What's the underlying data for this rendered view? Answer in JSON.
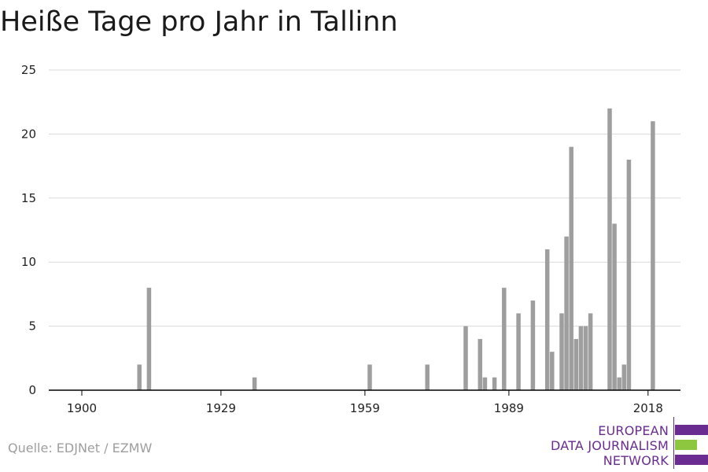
{
  "title": "Heiße Tage pro Jahr in Tallinn",
  "source": "Quelle: EDJNet / EZMW",
  "logo": {
    "lines": [
      "EUROPEAN",
      "DATA JOURNALISM",
      "NETWORK"
    ],
    "colors": {
      "purple": "#6a2c91",
      "green": "#8dc63f"
    }
  },
  "colors": {
    "bar": "#9e9e9e",
    "grid": "#d9d9d9",
    "axis": "#000000"
  },
  "chart_data": {
    "type": "bar",
    "title": "Heiße Tage pro Jahr in Tallinn",
    "xlabel": "",
    "ylabel": "",
    "xlim": [
      1894,
      2024
    ],
    "ylim": [
      0,
      25
    ],
    "x_ticks": [
      1900,
      1929,
      1959,
      1989,
      2018
    ],
    "y_ticks": [
      0,
      5,
      10,
      15,
      20,
      25
    ],
    "grid": true,
    "years": [
      1912,
      1914,
      1936,
      1960,
      1972,
      1980,
      1983,
      1984,
      1986,
      1988,
      1991,
      1994,
      1997,
      1998,
      2000,
      2001,
      2002,
      2003,
      2004,
      2005,
      2006,
      2010,
      2011,
      2012,
      2013,
      2014,
      2019
    ],
    "values": [
      2,
      8,
      1,
      2,
      2,
      5,
      4,
      1,
      1,
      8,
      6,
      7,
      11,
      3,
      6,
      12,
      19,
      4,
      5,
      5,
      6,
      22,
      13,
      1,
      2,
      18,
      21
    ]
  }
}
